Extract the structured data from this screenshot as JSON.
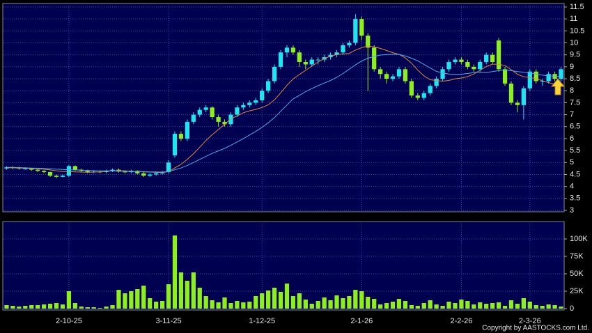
{
  "chart_data": [
    {
      "type": "candlestick",
      "series": [
        {
          "name": "open",
          "values": [
            4.75,
            4.8,
            4.78,
            4.75,
            4.75,
            4.7,
            4.65,
            4.6,
            4.45,
            4.4,
            4.45,
            4.85,
            4.7,
            4.65,
            4.6,
            4.62,
            4.6,
            4.65,
            4.7,
            4.62,
            4.6,
            4.65,
            4.55,
            4.45,
            4.5,
            4.55,
            4.6,
            5.3,
            6.2,
            6.0,
            6.7,
            7.0,
            7.2,
            7.3,
            6.9,
            6.7,
            6.6,
            7.0,
            7.3,
            7.4,
            7.5,
            7.6,
            8.0,
            8.4,
            9.0,
            9.6,
            9.8,
            9.6,
            9.2,
            9.1,
            9.3,
            9.3,
            9.4,
            9.5,
            9.6,
            9.9,
            10.0,
            11.0,
            10.3,
            9.8,
            8.9,
            8.7,
            8.5,
            8.6,
            8.9,
            8.4,
            7.8,
            7.7,
            7.9,
            8.2,
            8.5,
            8.9,
            9.2,
            9.3,
            9.2,
            9.0,
            8.9,
            9.2,
            9.5,
            10.1,
            8.9,
            8.3,
            7.5,
            7.4,
            8.1,
            8.8,
            8.4,
            8.4,
            8.7,
            8.5
          ]
        },
        {
          "name": "high",
          "values": [
            4.85,
            4.85,
            4.82,
            4.8,
            4.78,
            4.72,
            4.68,
            4.62,
            4.5,
            4.5,
            4.9,
            4.88,
            4.75,
            4.7,
            4.68,
            4.67,
            4.7,
            4.75,
            4.75,
            4.68,
            4.7,
            4.68,
            4.6,
            4.55,
            4.6,
            4.65,
            5.1,
            6.3,
            6.3,
            6.8,
            7.1,
            7.3,
            7.4,
            7.35,
            7.0,
            6.8,
            7.1,
            7.4,
            7.5,
            7.6,
            7.7,
            8.1,
            8.5,
            9.1,
            9.7,
            9.9,
            9.9,
            9.7,
            9.3,
            9.4,
            9.4,
            9.5,
            9.6,
            9.7,
            10.0,
            10.1,
            11.2,
            11.1,
            10.4,
            9.9,
            9.0,
            8.8,
            8.7,
            9.0,
            9.0,
            8.5,
            7.9,
            8.0,
            8.3,
            8.6,
            9.0,
            9.3,
            9.4,
            9.4,
            9.3,
            9.1,
            9.3,
            9.6,
            9.6,
            10.2,
            9.0,
            8.4,
            7.6,
            8.2,
            8.9,
            8.9,
            8.5,
            8.8,
            8.8,
            9.0
          ]
        },
        {
          "name": "low",
          "values": [
            4.7,
            4.72,
            4.7,
            4.7,
            4.65,
            4.6,
            4.55,
            4.4,
            4.35,
            4.38,
            4.4,
            4.65,
            4.6,
            4.55,
            4.55,
            4.55,
            4.55,
            4.6,
            4.58,
            4.55,
            4.55,
            4.5,
            4.4,
            4.4,
            4.45,
            4.5,
            4.55,
            5.2,
            5.9,
            5.9,
            6.6,
            6.9,
            7.1,
            6.8,
            6.5,
            6.5,
            6.5,
            6.9,
            7.2,
            7.3,
            7.4,
            7.5,
            7.9,
            8.3,
            8.9,
            9.4,
            9.5,
            9.0,
            8.9,
            9.0,
            9.1,
            9.2,
            9.3,
            9.4,
            9.5,
            9.8,
            9.9,
            10.1,
            8.0,
            8.8,
            8.5,
            8.3,
            8.4,
            8.5,
            8.3,
            7.7,
            7.6,
            7.6,
            7.8,
            8.1,
            8.4,
            8.8,
            9.1,
            9.1,
            8.9,
            8.8,
            8.8,
            9.1,
            9.1,
            8.8,
            8.2,
            7.4,
            7.1,
            6.8,
            8.0,
            8.3,
            8.2,
            8.3,
            8.4,
            8.4
          ]
        },
        {
          "name": "close",
          "values": [
            4.8,
            4.78,
            4.75,
            4.75,
            4.7,
            4.65,
            4.6,
            4.45,
            4.4,
            4.45,
            4.85,
            4.7,
            4.65,
            4.6,
            4.62,
            4.6,
            4.65,
            4.7,
            4.62,
            4.6,
            4.65,
            4.55,
            4.45,
            4.5,
            4.55,
            4.6,
            5.0,
            6.2,
            6.0,
            6.7,
            7.0,
            7.2,
            7.3,
            6.9,
            6.7,
            6.6,
            7.0,
            7.3,
            7.4,
            7.5,
            7.6,
            8.0,
            8.4,
            9.0,
            9.6,
            9.8,
            9.6,
            9.2,
            9.1,
            9.3,
            9.3,
            9.4,
            9.5,
            9.6,
            9.9,
            10.0,
            11.0,
            10.3,
            9.8,
            8.9,
            8.7,
            8.5,
            8.6,
            8.9,
            8.4,
            7.8,
            7.7,
            7.9,
            8.2,
            8.5,
            8.9,
            9.2,
            9.3,
            9.2,
            9.0,
            8.9,
            9.2,
            9.5,
            9.2,
            8.9,
            8.3,
            7.5,
            7.4,
            8.1,
            8.8,
            8.4,
            8.4,
            8.7,
            8.5,
            8.9
          ]
        }
      ],
      "up_color": "#1ee6f0",
      "down_color": "#8cf01e",
      "lines": [
        {
          "color": "#e8873a",
          "values": [
            4.78,
            4.78,
            4.77,
            4.76,
            4.75,
            4.74,
            4.72,
            4.69,
            4.65,
            4.62,
            4.62,
            4.61,
            4.6,
            4.59,
            4.6,
            4.61,
            4.63,
            4.65,
            4.66,
            4.65,
            4.64,
            4.63,
            4.61,
            4.6,
            4.59,
            4.58,
            4.62,
            4.78,
            4.92,
            5.13,
            5.37,
            5.64,
            5.92,
            6.16,
            6.38,
            6.59,
            6.83,
            6.94,
            7.08,
            7.16,
            7.22,
            7.3,
            7.41,
            7.62,
            7.91,
            8.23,
            8.49,
            8.68,
            8.85,
            9.03,
            9.2,
            9.34,
            9.45,
            9.51,
            9.54,
            9.56,
            9.7,
            9.8,
            9.87,
            9.83,
            9.77,
            9.68,
            9.59,
            9.52,
            9.37,
            9.15,
            8.86,
            8.62,
            8.46,
            8.42,
            8.4,
            8.43,
            8.5,
            8.53,
            8.59,
            8.7,
            8.85,
            9.01,
            9.11,
            9.11,
            9.05,
            8.88,
            8.69,
            8.58,
            8.56,
            8.5,
            8.42,
            8.34,
            8.27,
            8.27
          ]
        },
        {
          "color": "#4aaeea",
          "values": [
            4.8,
            4.8,
            4.79,
            4.78,
            4.77,
            4.76,
            4.75,
            4.74,
            4.72,
            4.71,
            4.7,
            4.69,
            4.68,
            4.67,
            4.66,
            4.65,
            4.65,
            4.65,
            4.64,
            4.64,
            4.63,
            4.62,
            4.62,
            4.61,
            4.61,
            4.6,
            4.62,
            4.7,
            4.77,
            4.88,
            5.0,
            5.13,
            5.26,
            5.38,
            5.49,
            5.59,
            5.72,
            5.86,
            6.0,
            6.15,
            6.3,
            6.47,
            6.66,
            6.88,
            7.14,
            7.4,
            7.66,
            7.81,
            7.96,
            8.09,
            8.21,
            8.32,
            8.43,
            8.56,
            8.72,
            8.9,
            9.08,
            9.24,
            9.36,
            9.43,
            9.49,
            9.51,
            9.52,
            9.52,
            9.45,
            9.36,
            9.25,
            9.1,
            8.95,
            8.81,
            8.74,
            8.7,
            8.69,
            8.69,
            8.72,
            8.76,
            8.77,
            8.76,
            8.8,
            8.84,
            8.87,
            8.84,
            8.8,
            8.77,
            8.75,
            8.7,
            8.65,
            8.62,
            8.61,
            8.6
          ]
        }
      ],
      "ylim": [
        3,
        11.5
      ],
      "yticks": [
        3,
        3.5,
        4,
        4.5,
        5,
        5.5,
        6,
        6.5,
        7,
        7.5,
        8,
        8.5,
        9,
        9.5,
        10,
        10.5,
        11,
        11.5
      ],
      "xticks": [
        {
          "value": 10,
          "label": "2-10-25"
        },
        {
          "value": 26,
          "label": "3-11-25"
        },
        {
          "value": 41,
          "label": "1-12-25"
        },
        {
          "value": 57,
          "label": "2-1-26"
        },
        {
          "value": 73,
          "label": "2-2-26"
        },
        {
          "value": 84,
          "label": "2-3-26"
        }
      ],
      "grid": true
    },
    {
      "type": "bar",
      "color": "#8cf01e",
      "values": [
        5000,
        4000,
        3000,
        4000,
        5000,
        5000,
        6000,
        7000,
        8000,
        6000,
        25000,
        8000,
        3000,
        2000,
        2000,
        1000,
        3000,
        5000,
        27000,
        22000,
        25000,
        28000,
        33000,
        15000,
        10000,
        11000,
        35000,
        105000,
        52000,
        40000,
        52000,
        30000,
        18000,
        12000,
        9000,
        16000,
        8000,
        11000,
        9000,
        10000,
        18000,
        22000,
        26000,
        30000,
        24000,
        36000,
        18000,
        22000,
        13000,
        7000,
        11000,
        16000,
        12000,
        19000,
        15000,
        18000,
        27000,
        25000,
        17000,
        14000,
        6000,
        8000,
        10000,
        14000,
        11000,
        5000,
        4000,
        8000,
        12000,
        6000,
        4000,
        10000,
        8000,
        13000,
        11000,
        6000,
        9000,
        7000,
        8000,
        9000,
        4000,
        12000,
        7000,
        15000,
        10000,
        5000,
        4000,
        6000,
        5000,
        3000
      ],
      "ylim": [
        0,
        120000
      ],
      "yticks": [
        0,
        {
          "value": 25000,
          "label": "25K"
        },
        {
          "value": 50000,
          "label": "50K"
        },
        {
          "value": 75000,
          "label": "75K"
        },
        {
          "value": 100000,
          "label": "100K"
        }
      ],
      "grid": true
    }
  ],
  "copyright": "Copyright by AASTOCKS.com Ltd."
}
